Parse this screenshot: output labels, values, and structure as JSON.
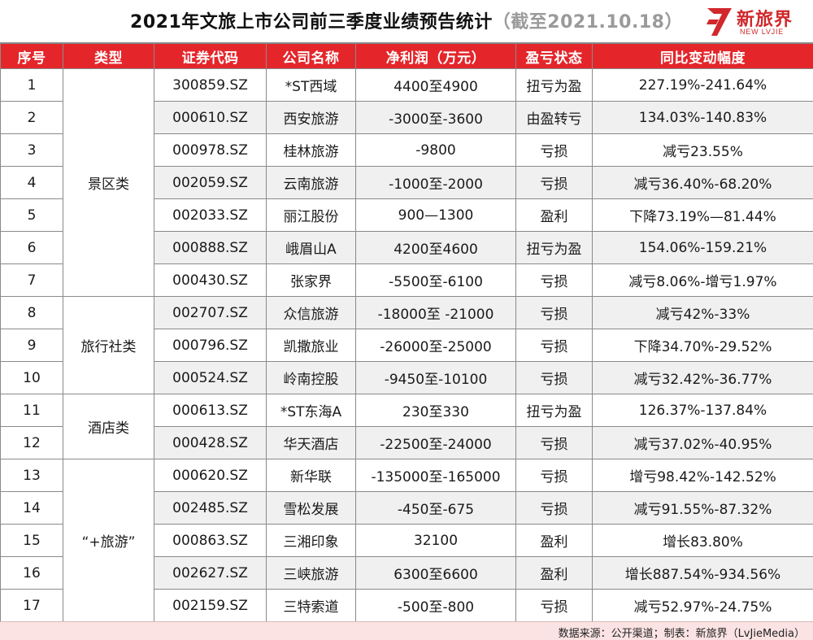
{
  "title": {
    "main": "2021年文旅上市公司前三季度业绩预告统计",
    "sub": "（截至2021.10.18）"
  },
  "logo": {
    "brand_cn": "新旅界",
    "brand_en": "NEW LVJIE",
    "icon": "stylized-seven-logo-icon",
    "color": "#d0282b"
  },
  "colors": {
    "header_bg": "#e4262b",
    "header_text": "#ffffff",
    "row_alt": "#f0f0f0",
    "footer_bg": "#fbe3e3"
  },
  "table": {
    "headers": [
      "序号",
      "类型",
      "证券代码",
      "公司名称",
      "净利润（万元）",
      "盈亏状态",
      "同比变动幅度"
    ],
    "categories": [
      {
        "label": "景区类",
        "start": 0,
        "span": 7
      },
      {
        "label": "旅行社类",
        "start": 7,
        "span": 3
      },
      {
        "label": "酒店类",
        "start": 10,
        "span": 2
      },
      {
        "label": "“+旅游”",
        "start": 12,
        "span": 5
      }
    ],
    "rows": [
      {
        "no": "1",
        "code": "300859.SZ",
        "name": "*ST西域",
        "profit": "4400至4900",
        "status": "扭亏为盈",
        "change": "227.19%-241.64%"
      },
      {
        "no": "2",
        "code": "000610.SZ",
        "name": "西安旅游",
        "profit": "-3000至-3600",
        "status": "由盈转亏",
        "change": "134.03%-140.83%"
      },
      {
        "no": "3",
        "code": "000978.SZ",
        "name": "桂林旅游",
        "profit": "-9800",
        "status": "亏损",
        "change": "减亏23.55%"
      },
      {
        "no": "4",
        "code": "002059.SZ",
        "name": "云南旅游",
        "profit": "-1000至-2000",
        "status": "亏损",
        "change": "减亏36.40%-68.20%"
      },
      {
        "no": "5",
        "code": "002033.SZ",
        "name": "丽江股份",
        "profit": "900—1300",
        "status": "盈利",
        "change": "下降73.19%—81.44%"
      },
      {
        "no": "6",
        "code": "000888.SZ",
        "name": "峨眉山A",
        "profit": "4200至4600",
        "status": "扭亏为盈",
        "change": "154.06%-159.21%"
      },
      {
        "no": "7",
        "code": "000430.SZ",
        "name": "张家界",
        "profit": "-5500至-6100",
        "status": "亏损",
        "change": "减亏8.06%-增亏1.97%"
      },
      {
        "no": "8",
        "code": "002707.SZ",
        "name": "众信旅游",
        "profit": "-18000至 -21000",
        "status": "亏损",
        "change": "减亏42%-33%"
      },
      {
        "no": "9",
        "code": "000796.SZ",
        "name": "凯撒旅业",
        "profit": "-26000至-25000",
        "status": "亏损",
        "change": "下降34.70%-29.52%"
      },
      {
        "no": "10",
        "code": "000524.SZ",
        "name": "岭南控股",
        "profit": "-9450至-10100",
        "status": "亏损",
        "change": "减亏32.42%-36.77%"
      },
      {
        "no": "11",
        "code": "000613.SZ",
        "name": "*ST东海A",
        "profit": "230至330",
        "status": "扭亏为盈",
        "change": "126.37%-137.84%"
      },
      {
        "no": "12",
        "code": "000428.SZ",
        "name": "华天酒店",
        "profit": "-22500至-24000",
        "status": "亏损",
        "change": "减亏37.02%-40.95%"
      },
      {
        "no": "13",
        "code": "000620.SZ",
        "name": "新华联",
        "profit": "-135000至-165000",
        "status": "亏损",
        "change": "增亏98.42%-142.52%"
      },
      {
        "no": "14",
        "code": "002485.SZ",
        "name": "雪松发展",
        "profit": "-450至-675",
        "status": "亏损",
        "change": "减亏91.55%-87.32%"
      },
      {
        "no": "15",
        "code": "000863.SZ",
        "name": "三湘印象",
        "profit": "32100",
        "status": "盈利",
        "change": "增长83.80%"
      },
      {
        "no": "16",
        "code": "002627.SZ",
        "name": "三峡旅游",
        "profit": "6300至6600",
        "status": "盈利",
        "change": "增长887.54%-934.56%"
      },
      {
        "no": "17",
        "code": "002159.SZ",
        "name": "三特索道",
        "profit": "-500至-800",
        "status": "亏损",
        "change": "减亏52.97%-24.75%"
      }
    ]
  },
  "footer": {
    "source": "数据来源：公开渠道；制表：新旅界（LvJieMedia）"
  }
}
